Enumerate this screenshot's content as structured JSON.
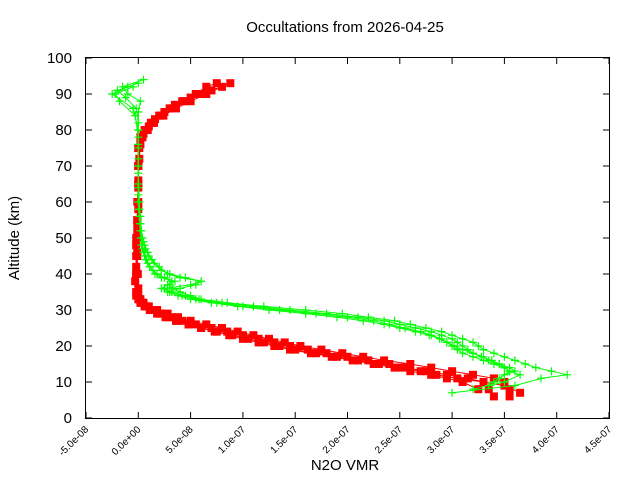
{
  "chart_data": {
    "type": "scatter",
    "title": "Occultations from 2026-04-25",
    "xlabel": "N2O VMR",
    "ylabel": "Altitude (km)",
    "xlim": [
      -5e-08,
      4.5e-07
    ],
    "ylim": [
      0,
      100
    ],
    "x_ticks": [
      -5e-08,
      0,
      5e-08,
      1e-07,
      1.5e-07,
      2e-07,
      2.5e-07,
      3e-07,
      3.5e-07,
      4e-07,
      4.5e-07
    ],
    "x_tick_labels": [
      "-5.0e-08",
      "0.0e+00",
      "5.0e-08",
      "1.0e-07",
      "1.5e-07",
      "2.0e-07",
      "2.5e-07",
      "3.0e-07",
      "3.5e-07",
      "4.0e-07",
      "4.5e-07"
    ],
    "y_ticks": [
      0,
      10,
      20,
      30,
      40,
      50,
      60,
      70,
      80,
      90,
      100
    ],
    "y_tick_labels": [
      "0",
      "10",
      "20",
      "30",
      "40",
      "50",
      "60",
      "70",
      "80",
      "90",
      "100"
    ],
    "grid": false,
    "legend": "none",
    "series": [
      {
        "color": "#ff0000",
        "marker": "square",
        "profiles": [
          {
            "y": [
              6,
              8,
              10,
              11,
              12,
              13,
              14,
              15,
              16,
              17,
              18,
              19,
              20,
              21,
              22,
              23,
              24,
              25,
              26,
              27,
              28,
              29,
              30,
              31,
              32,
              33,
              34,
              36,
              40,
              45,
              50,
              55,
              60,
              65,
              70,
              75,
              78,
              80,
              82,
              84,
              86,
              88,
              90,
              92,
              93
            ],
            "x": [
              3.55e-07,
              3.55e-07,
              3.5e-07,
              3.4e-07,
              3.2e-07,
              3e-07,
              2.8e-07,
              2.6e-07,
              2.35e-07,
              2.15e-07,
              1.95e-07,
              1.75e-07,
              1.55e-07,
              1.4e-07,
              1.25e-07,
              1.1e-07,
              9.5e-08,
              8e-08,
              6.5e-08,
              5e-08,
              3.8e-08,
              2.8e-08,
              1.8e-08,
              1e-08,
              5e-09,
              2e-09,
              0,
              0,
              -5e-10,
              -1e-09,
              -1e-09,
              -1e-09,
              -5e-10,
              0,
              0,
              0,
              2e-09,
              6e-09,
              1.2e-08,
              2e-08,
              3e-08,
              4.2e-08,
              5.5e-08,
              6.5e-08,
              7.5e-08
            ]
          },
          {
            "y": [
              6,
              8,
              10,
              11,
              12,
              13,
              14,
              15,
              16,
              17,
              18,
              19,
              20,
              21,
              22,
              23,
              24,
              25,
              26,
              27,
              28,
              29,
              30,
              31,
              32,
              33,
              35,
              40,
              45,
              50,
              55,
              60,
              65,
              70,
              75,
              78,
              80,
              82,
              84,
              86,
              88,
              90,
              92
            ],
            "x": [
              3.4e-07,
              3.35e-07,
              3.3e-07,
              3.15e-07,
              2.95e-07,
              2.75e-07,
              2.55e-07,
              2.4e-07,
              2.2e-07,
              2e-07,
              1.8e-07,
              1.62e-07,
              1.45e-07,
              1.3e-07,
              1.15e-07,
              1e-07,
              8.5e-08,
              7e-08,
              5.5e-08,
              4.2e-08,
              3.2e-08,
              2.2e-08,
              1.3e-08,
              7e-09,
              3e-09,
              1e-09,
              -1e-09,
              -2e-09,
              -2e-09,
              -2e-09,
              -1e-09,
              -1e-09,
              0,
              0,
              0,
              3e-09,
              8e-09,
              1.5e-08,
              2.4e-08,
              3.6e-08,
              5e-08,
              6.5e-08,
              8e-08
            ]
          },
          {
            "y": [
              7,
              9,
              10,
              11,
              12,
              13,
              14,
              15,
              16,
              17,
              18,
              19,
              20,
              21,
              22,
              23,
              24,
              25,
              26,
              27,
              28,
              29,
              30,
              31,
              32,
              34,
              38,
              42,
              48,
              54,
              60,
              66,
              72,
              76,
              79,
              81,
              83,
              85,
              87,
              89,
              91,
              93
            ],
            "x": [
              3.65e-07,
              3.5e-07,
              3.3e-07,
              3.05e-07,
              2.85e-07,
              2.7e-07,
              2.5e-07,
              2.3e-07,
              2.1e-07,
              1.9e-07,
              1.7e-07,
              1.5e-07,
              1.35e-07,
              1.2e-07,
              1.05e-07,
              9e-08,
              7.5e-08,
              6e-08,
              4.8e-08,
              3.6e-08,
              2.6e-08,
              1.8e-08,
              1.1e-08,
              6e-09,
              2e-09,
              -2e-09,
              -3e-09,
              -2e-09,
              -2e-09,
              -1e-09,
              0,
              0,
              1e-09,
              2e-09,
              5e-09,
              1e-08,
              1.6e-08,
              2.5e-08,
              3.5e-08,
              5e-08,
              7e-08,
              8.8e-08
            ]
          },
          {
            "y": [
              8,
              10,
              11,
              12,
              13,
              14,
              15,
              16,
              17,
              18,
              19,
              20,
              21,
              22,
              23,
              24,
              25,
              26,
              27,
              28,
              29,
              30,
              31,
              32,
              33,
              35,
              40,
              46,
              52,
              58,
              64,
              70,
              75,
              78,
              80,
              82,
              84,
              86,
              88,
              90
            ],
            "x": [
              3.25e-07,
              3.1e-07,
              2.95e-07,
              2.8e-07,
              2.6e-07,
              2.45e-07,
              2.25e-07,
              2.05e-07,
              1.85e-07,
              1.65e-07,
              1.45e-07,
              1.3e-07,
              1.15e-07,
              1e-07,
              8.7e-08,
              7.3e-08,
              6e-08,
              4.8e-08,
              3.7e-08,
              2.8e-08,
              2e-08,
              1.3e-08,
              7e-09,
              3e-09,
              0,
              -2e-09,
              -2e-09,
              -1e-09,
              -1e-09,
              0,
              0,
              0,
              1e-09,
              4e-09,
              9e-09,
              1.4e-08,
              2.2e-08,
              3.1e-08,
              4.4e-08,
              5.8e-08
            ]
          }
        ]
      },
      {
        "color": "#00ff00",
        "marker": "plus",
        "profiles": [
          {
            "y": [
              7,
              9,
              11,
              12,
              13,
              14,
              15,
              16,
              17,
              18,
              19,
              20,
              21,
              22,
              23,
              24,
              25,
              26,
              27,
              28,
              29,
              30,
              31,
              32,
              33,
              34,
              35,
              36,
              37,
              38,
              39,
              40,
              41,
              42,
              43,
              44,
              45,
              46,
              47,
              48,
              50,
              52,
              54,
              56,
              58,
              60,
              65,
              70,
              75,
              80,
              85,
              88,
              90,
              92,
              94
            ],
            "x": [
              3e-07,
              3.6e-07,
              3.85e-07,
              4.1e-07,
              3.95e-07,
              3.8e-07,
              3.7e-07,
              3.6e-07,
              3.5e-07,
              3.4e-07,
              3.3e-07,
              3.25e-07,
              3.2e-07,
              3.1e-07,
              3e-07,
              2.9e-07,
              2.75e-07,
              2.6e-07,
              2.45e-07,
              2.2e-07,
              1.95e-07,
              1.6e-07,
              1.2e-07,
              8.5e-08,
              6e-08,
              5e-08,
              4e-08,
              3.3e-08,
              3e-08,
              3.5e-08,
              2.5e-08,
              1.8e-08,
              1.4e-08,
              1.1e-08,
              9e-09,
              7e-09,
              6e-09,
              5e-09,
              4e-09,
              3e-09,
              2.5e-09,
              2e-09,
              1.5e-09,
              1e-09,
              5e-10,
              0,
              0,
              0,
              0,
              0,
              0,
              2e-09,
              -1e-08,
              -1.5e-08,
              5e-09
            ]
          },
          {
            "y": [
              8,
              10,
              12,
              13,
              14,
              15,
              16,
              17,
              18,
              19,
              20,
              21,
              22,
              23,
              24,
              25,
              26,
              27,
              28,
              29,
              30,
              31,
              32,
              33,
              34,
              35,
              36,
              37,
              38,
              39,
              40,
              42,
              44,
              46,
              48,
              50,
              54,
              58,
              62,
              70,
              78,
              84,
              88,
              90,
              92
            ],
            "x": [
              3.2e-07,
              3.5e-07,
              3.65e-07,
              3.55e-07,
              3.5e-07,
              3.45e-07,
              3.35e-07,
              3.3e-07,
              3.2e-07,
              3.15e-07,
              3.1e-07,
              3.05e-07,
              3e-07,
              2.9e-07,
              2.8e-07,
              2.65e-07,
              2.5e-07,
              2.35e-07,
              2.1e-07,
              1.8e-07,
              1.45e-07,
              1.1e-07,
              8e-08,
              5.8e-08,
              4.5e-08,
              3e-08,
              2.2e-08,
              2.8e-08,
              3.2e-08,
              2.2e-08,
              1.6e-08,
              1.1e-08,
              8e-09,
              6e-09,
              4e-09,
              3e-09,
              2e-09,
              1e-09,
              0,
              0,
              0,
              -3e-09,
              -1.8e-08,
              -2.2e-08,
              -5e-09
            ]
          },
          {
            "y": [
              9,
              11,
              13,
              14,
              15,
              16,
              17,
              18,
              19,
              20,
              21,
              22,
              23,
              24,
              25,
              26,
              27,
              28,
              29,
              30,
              31,
              32,
              33,
              34,
              35,
              36,
              37,
              38,
              39,
              40,
              41,
              43,
              45,
              47,
              49,
              52,
              56,
              60,
              68,
              76,
              82,
              86,
              89,
              91,
              93
            ],
            "x": [
              3.35e-07,
              3.45e-07,
              3.55e-07,
              3.5e-07,
              3.4e-07,
              3.3e-07,
              3.2e-07,
              3.1e-07,
              3.05e-07,
              3e-07,
              2.95e-07,
              2.9e-07,
              2.8e-07,
              2.7e-07,
              2.55e-07,
              2.4e-07,
              2.25e-07,
              2e-07,
              1.7e-07,
              1.35e-07,
              1e-07,
              7.5e-08,
              5.5e-08,
              4.2e-08,
              3.2e-08,
              2.5e-08,
              5e-08,
              6e-08,
              4.5e-08,
              3e-08,
              2.2e-08,
              1.5e-08,
              1e-08,
              7e-09,
              5e-09,
              3e-09,
              2e-09,
              1e-09,
              0,
              0,
              0,
              -2e-09,
              -1.2e-08,
              -2e-08,
              0
            ]
          },
          {
            "y": [
              10,
              12,
              13,
              14,
              15,
              16,
              17,
              18,
              19,
              20,
              21,
              22,
              23,
              24,
              25,
              26,
              27,
              28,
              29,
              30,
              31,
              32,
              33,
              34,
              35,
              36,
              37,
              38,
              39,
              40,
              42,
              44,
              46,
              48,
              50,
              54,
              58,
              64,
              72,
              80,
              86,
              90,
              92
            ],
            "x": [
              3.4e-07,
              3.5e-07,
              3.6e-07,
              3.55e-07,
              3.45e-07,
              3.38e-07,
              3.28e-07,
              3.2e-07,
              3.1e-07,
              3.02e-07,
              2.95e-07,
              2.88e-07,
              2.78e-07,
              2.65e-07,
              2.5e-07,
              2.35e-07,
              2.15e-07,
              1.9e-07,
              1.6e-07,
              1.25e-07,
              9.5e-08,
              7e-08,
              5e-08,
              3.8e-08,
              2.8e-08,
              4e-08,
              5.5e-08,
              6e-08,
              4e-08,
              2.8e-08,
              2e-08,
              1.3e-08,
              9e-09,
              6e-09,
              4e-09,
              2e-09,
              1e-09,
              0,
              0,
              0,
              -5e-09,
              -2.5e-08,
              -1e-08
            ]
          }
        ]
      }
    ]
  }
}
